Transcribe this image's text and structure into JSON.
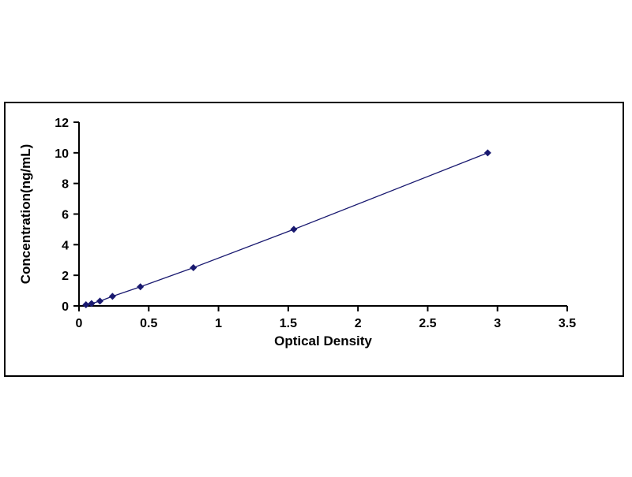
{
  "figure": {
    "background": "#ffffff",
    "frame_color": "#000000"
  },
  "chart_data": {
    "type": "line",
    "title": "",
    "xlabel": "Optical Density",
    "ylabel": "Concentration(ng/mL)",
    "x": [
      0.05,
      0.09,
      0.15,
      0.24,
      0.44,
      0.82,
      1.54,
      2.93
    ],
    "y": [
      0.078,
      0.156,
      0.313,
      0.625,
      1.25,
      2.5,
      5,
      10
    ],
    "xlim": [
      0,
      3.5
    ],
    "ylim": [
      0,
      12
    ],
    "xticks": [
      0,
      0.5,
      1,
      1.5,
      2,
      2.5,
      3,
      3.5
    ],
    "xtick_labels": [
      "0",
      "0.5",
      "1",
      "1.5",
      "2",
      "2.5",
      "3",
      "3.5"
    ],
    "yticks": [
      0,
      2,
      4,
      6,
      8,
      10,
      12
    ],
    "ytick_labels": [
      "0",
      "2",
      "4",
      "6",
      "8",
      "10",
      "12"
    ],
    "grid": false,
    "legend": null,
    "marker": "diamond",
    "line_color": "#191970",
    "marker_color": "#191970",
    "axis_color": "#000000",
    "text_color": "#000000"
  }
}
